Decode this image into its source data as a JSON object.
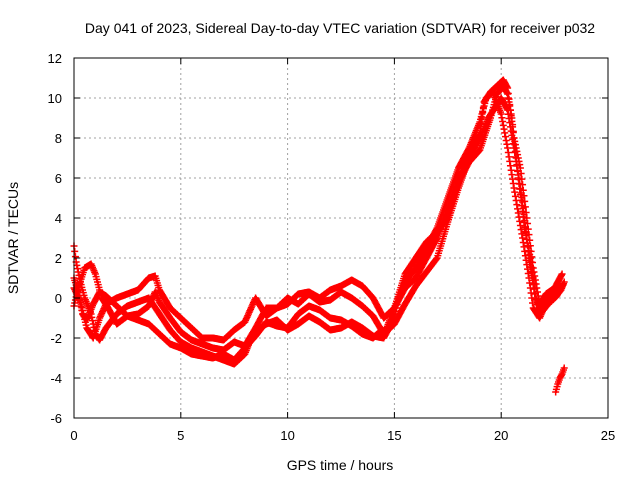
{
  "chart_data": {
    "type": "scatter",
    "title": "Day 041 of 2023, Sidereal Day-to-day VTEC variation (SDTVAR) for receiver p032",
    "xlabel": "GPS time / hours",
    "ylabel": "SDTVAR / TECUs",
    "xlim": [
      0,
      25
    ],
    "ylim": [
      -6,
      12
    ],
    "xticks": [
      0,
      5,
      10,
      15,
      20,
      25
    ],
    "yticks": [
      -6,
      -4,
      -2,
      0,
      2,
      4,
      6,
      8,
      10,
      12
    ],
    "grid": true,
    "marker": "+",
    "series": [
      {
        "name": "track-1",
        "color": "#ff0000",
        "points": [
          [
            0.0,
            2.6
          ],
          [
            0.1,
            1.8
          ],
          [
            0.3,
            0.8
          ],
          [
            0.5,
            0.0
          ],
          [
            0.8,
            -0.8
          ],
          [
            1.0,
            -1.8
          ],
          [
            1.2,
            -2.1
          ],
          [
            1.5,
            -1.5
          ],
          [
            2.0,
            -0.8
          ],
          [
            2.5,
            -0.4
          ],
          [
            3.0,
            -0.2
          ],
          [
            3.5,
            0.0
          ],
          [
            4.0,
            -0.8
          ],
          [
            4.5,
            -1.6
          ],
          [
            5.0,
            -2.2
          ],
          [
            5.5,
            -2.5
          ],
          [
            6.0,
            -2.7
          ],
          [
            6.5,
            -2.9
          ],
          [
            7.0,
            -3.1
          ],
          [
            7.5,
            -3.3
          ],
          [
            8.0,
            -2.8
          ],
          [
            8.3,
            -2.0
          ],
          [
            8.6,
            -1.6
          ],
          [
            9.0,
            -1.3
          ],
          [
            9.5,
            -1.1
          ],
          [
            10.0,
            -1.6
          ],
          [
            10.5,
            -1.3
          ],
          [
            11.0,
            -0.9
          ],
          [
            11.5,
            -1.2
          ],
          [
            12.0,
            -1.6
          ],
          [
            12.5,
            -1.5
          ],
          [
            13.0,
            -1.2
          ],
          [
            13.5,
            -1.5
          ],
          [
            14.0,
            -1.9
          ],
          [
            14.5,
            -2.0
          ],
          [
            15.0,
            -1.0
          ],
          [
            15.2,
            0.0
          ],
          [
            15.5,
            0.8
          ],
          [
            16.0,
            1.5
          ],
          [
            16.5,
            2.5
          ],
          [
            17.0,
            3.5
          ],
          [
            17.5,
            5.0
          ],
          [
            18.0,
            6.5
          ],
          [
            18.5,
            7.5
          ],
          [
            19.0,
            8.8
          ],
          [
            19.3,
            10.0
          ],
          [
            19.6,
            10.3
          ],
          [
            20.0,
            9.2
          ],
          [
            20.3,
            7.5
          ],
          [
            20.6,
            5.5
          ],
          [
            21.0,
            3.0
          ],
          [
            21.3,
            1.0
          ],
          [
            21.5,
            -0.5
          ],
          [
            21.8,
            -1.0
          ],
          [
            22.0,
            -0.5
          ],
          [
            22.5,
            0.0
          ],
          [
            22.8,
            0.4
          ],
          [
            22.95,
            0.8
          ]
        ]
      },
      {
        "name": "track-2",
        "color": "#ff0000",
        "points": [
          [
            0.0,
            1.0
          ],
          [
            0.2,
            0.3
          ],
          [
            0.4,
            -0.8
          ],
          [
            0.6,
            -1.1
          ],
          [
            0.9,
            -0.3
          ],
          [
            1.2,
            0.3
          ],
          [
            1.5,
            0.1
          ],
          [
            2.0,
            -0.4
          ],
          [
            2.5,
            -0.9
          ],
          [
            3.0,
            -0.8
          ],
          [
            3.5,
            -0.4
          ],
          [
            3.8,
            0.3
          ],
          [
            4.0,
            -0.2
          ],
          [
            4.5,
            -1.0
          ],
          [
            5.0,
            -1.7
          ],
          [
            5.5,
            -2.1
          ],
          [
            6.0,
            -2.3
          ],
          [
            6.5,
            -2.5
          ],
          [
            7.0,
            -2.6
          ],
          [
            7.5,
            -2.2
          ],
          [
            8.0,
            -2.4
          ],
          [
            8.5,
            -1.5
          ],
          [
            9.0,
            -0.5
          ],
          [
            9.5,
            -0.5
          ],
          [
            10.0,
            0.0
          ],
          [
            10.5,
            -0.3
          ],
          [
            11.0,
            0.2
          ],
          [
            11.5,
            -0.2
          ],
          [
            12.0,
            -0.1
          ],
          [
            12.5,
            0.3
          ],
          [
            13.0,
            0.0
          ],
          [
            13.5,
            -0.4
          ],
          [
            14.0,
            -0.9
          ],
          [
            14.5,
            -1.8
          ],
          [
            15.0,
            -1.3
          ],
          [
            15.5,
            -0.3
          ],
          [
            16.0,
            0.6
          ],
          [
            16.5,
            1.3
          ],
          [
            17.0,
            2.0
          ],
          [
            17.5,
            3.8
          ],
          [
            18.0,
            5.5
          ],
          [
            18.5,
            7.0
          ],
          [
            19.0,
            8.0
          ],
          [
            19.4,
            9.0
          ],
          [
            19.7,
            9.5
          ],
          [
            20.0,
            10.0
          ],
          [
            20.3,
            9.4
          ],
          [
            20.6,
            7.5
          ],
          [
            21.0,
            4.8
          ],
          [
            21.3,
            2.0
          ],
          [
            21.6,
            0.0
          ],
          [
            21.9,
            -0.7
          ],
          [
            22.2,
            -0.3
          ],
          [
            22.6,
            0.1
          ],
          [
            22.9,
            0.7
          ]
        ]
      },
      {
        "name": "track-3",
        "color": "#ff0000",
        "points": [
          [
            0.0,
            0.5
          ],
          [
            0.3,
            -0.2
          ],
          [
            0.6,
            -1.5
          ],
          [
            0.9,
            -2.0
          ],
          [
            1.2,
            -1.0
          ],
          [
            1.5,
            -0.3
          ],
          [
            2.0,
            0.0
          ],
          [
            2.5,
            0.2
          ],
          [
            3.0,
            0.4
          ],
          [
            3.5,
            1.0
          ],
          [
            3.8,
            1.1
          ],
          [
            4.0,
            0.4
          ],
          [
            4.5,
            -0.5
          ],
          [
            5.0,
            -1.0
          ],
          [
            5.5,
            -1.5
          ],
          [
            6.0,
            -2.0
          ],
          [
            6.5,
            -2.0
          ],
          [
            7.0,
            -2.1
          ],
          [
            7.5,
            -1.6
          ],
          [
            8.0,
            -1.2
          ],
          [
            8.5,
            0.0
          ],
          [
            9.0,
            -0.9
          ],
          [
            9.5,
            -0.5
          ],
          [
            10.0,
            -0.3
          ],
          [
            10.5,
            0.2
          ],
          [
            11.0,
            0.3
          ],
          [
            11.5,
            0.0
          ],
          [
            12.0,
            0.4
          ],
          [
            12.5,
            0.6
          ],
          [
            13.0,
            0.9
          ],
          [
            13.5,
            0.6
          ],
          [
            14.0,
            0.0
          ],
          [
            14.5,
            -1.0
          ],
          [
            15.0,
            -0.5
          ],
          [
            15.5,
            0.5
          ],
          [
            16.0,
            1.0
          ],
          [
            16.5,
            2.0
          ],
          [
            17.0,
            3.0
          ],
          [
            17.5,
            4.5
          ],
          [
            18.0,
            6.0
          ],
          [
            18.5,
            7.2
          ],
          [
            19.0,
            8.2
          ],
          [
            19.2,
            9.8
          ],
          [
            19.5,
            10.3
          ],
          [
            19.8,
            10.6
          ],
          [
            20.1,
            10.9
          ],
          [
            20.3,
            10.5
          ],
          [
            20.6,
            8.0
          ],
          [
            20.9,
            6.5
          ],
          [
            21.2,
            4.0
          ],
          [
            21.5,
            1.5
          ],
          [
            21.8,
            -0.3
          ],
          [
            22.1,
            0.2
          ],
          [
            22.5,
            0.5
          ],
          [
            22.85,
            1.2
          ]
        ]
      },
      {
        "name": "track-4",
        "color": "#ff0000",
        "points": [
          [
            0.0,
            -0.4
          ],
          [
            0.2,
            0.5
          ],
          [
            0.5,
            1.5
          ],
          [
            0.8,
            1.7
          ],
          [
            1.0,
            1.2
          ],
          [
            1.3,
            0.0
          ],
          [
            1.6,
            -0.5
          ],
          [
            2.0,
            -1.3
          ],
          [
            2.5,
            -0.9
          ],
          [
            3.0,
            -1.1
          ],
          [
            3.5,
            -1.3
          ],
          [
            4.0,
            -1.8
          ],
          [
            4.5,
            -2.3
          ],
          [
            5.0,
            -2.5
          ],
          [
            5.5,
            -2.8
          ],
          [
            6.0,
            -2.9
          ],
          [
            6.5,
            -3.0
          ],
          [
            7.0,
            -2.8
          ],
          [
            7.5,
            -3.1
          ],
          [
            8.0,
            -2.5
          ],
          [
            8.5,
            -1.9
          ],
          [
            9.0,
            -1.2
          ],
          [
            9.5,
            -1.4
          ],
          [
            10.0,
            -1.5
          ],
          [
            10.5,
            -0.8
          ],
          [
            11.0,
            -0.4
          ],
          [
            11.5,
            -0.6
          ],
          [
            12.0,
            -1.0
          ],
          [
            12.5,
            -1.1
          ],
          [
            13.0,
            -1.4
          ],
          [
            13.5,
            -1.8
          ],
          [
            14.0,
            -2.0
          ],
          [
            14.3,
            -1.7
          ],
          [
            14.6,
            -1.6
          ],
          [
            15.0,
            -0.5
          ],
          [
            15.5,
            1.2
          ],
          [
            16.0,
            2.0
          ],
          [
            16.5,
            2.8
          ],
          [
            17.0,
            3.3
          ],
          [
            17.5,
            4.0
          ],
          [
            18.0,
            5.8
          ],
          [
            18.5,
            6.8
          ],
          [
            19.0,
            7.4
          ],
          [
            19.5,
            9.0
          ],
          [
            19.8,
            10.2
          ],
          [
            20.1,
            10.6
          ],
          [
            20.3,
            10.2
          ],
          [
            20.5,
            9.0
          ],
          [
            20.8,
            6.0
          ],
          [
            21.1,
            3.5
          ],
          [
            21.4,
            1.8
          ],
          [
            21.7,
            -0.6
          ],
          [
            22.0,
            -0.2
          ],
          [
            22.4,
            0.2
          ],
          [
            22.75,
            0.6
          ]
        ]
      },
      {
        "name": "track-5",
        "color": "#ff0000",
        "points": [
          [
            22.55,
            -4.7
          ],
          [
            22.65,
            -4.3
          ],
          [
            22.75,
            -4.0
          ],
          [
            22.85,
            -3.8
          ],
          [
            22.95,
            -3.5
          ]
        ]
      }
    ]
  }
}
